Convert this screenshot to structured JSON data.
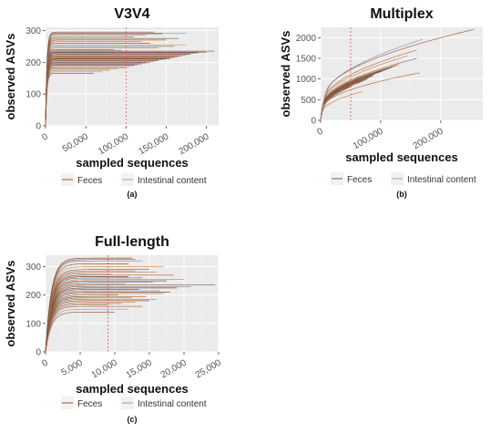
{
  "chart_data": [
    {
      "type": "line",
      "panel_label": "(a)",
      "title": "V3V4",
      "xlabel": "sampled sequences",
      "ylabel": "observed ASVs",
      "xlim": [
        0,
        215000
      ],
      "ylim": [
        0,
        310
      ],
      "xticks": [
        0,
        50000,
        100000,
        150000,
        200000
      ],
      "xtick_labels": [
        "0",
        "50,000",
        "100,000",
        "150,000",
        "200,000"
      ],
      "yticks": [
        0,
        100,
        200,
        300
      ],
      "ytick_labels": [
        "0",
        "100",
        "200",
        "300"
      ],
      "grid": true,
      "legend_position": "bottom",
      "reference_line_x": 100000,
      "series": [
        {
          "name": "Feces",
          "color": "#a0522d"
        },
        {
          "name": "Intestinal content",
          "color": "#8fa3c8"
        }
      ],
      "curves": {
        "saturation_x": 5000,
        "asymptotes": [
          165,
          170,
          175,
          180,
          183,
          186,
          190,
          192,
          195,
          198,
          200,
          202,
          205,
          208,
          210,
          212,
          215,
          218,
          220,
          222,
          225,
          228,
          230,
          232,
          235,
          238,
          240,
          245,
          250,
          255,
          260,
          265,
          270,
          275,
          280,
          285,
          290,
          292,
          295
        ],
        "max_x": [
          60000,
          70000,
          80000,
          90000,
          100000,
          105000,
          110000,
          115000,
          120000,
          125000,
          130000,
          135000,
          140000,
          145000,
          150000,
          155000,
          160000,
          165000,
          170000,
          175000,
          180000,
          185000,
          190000,
          200000,
          210000,
          95000,
          85000,
          140000,
          160000,
          175000,
          130000,
          120000,
          150000,
          165000,
          110000,
          125000,
          145000,
          175000,
          135000
        ]
      }
    },
    {
      "type": "line",
      "panel_label": "(b)",
      "title": "Multiplex",
      "xlabel": "sampled sequences",
      "ylabel": "observed ASVs",
      "xlim": [
        0,
        270000
      ],
      "ylim": [
        0,
        2250
      ],
      "xticks": [
        0,
        100000,
        200000
      ],
      "xtick_labels": [
        "0",
        "100,000",
        "200,000"
      ],
      "yticks": [
        0,
        500,
        1000,
        1500,
        2000
      ],
      "ytick_labels": [
        "0",
        "500",
        "1000",
        "1500",
        "2000"
      ],
      "grid": true,
      "legend_position": "bottom",
      "reference_line_x": 50000,
      "series": [
        {
          "name": "Feces",
          "color": "#a0522d"
        },
        {
          "name": "Intestinal content",
          "color": "#8fa3c8"
        }
      ],
      "curves": {
        "model": "power",
        "endpoints": [
          [
            255000,
            2200
          ],
          [
            170000,
            1960
          ],
          [
            160000,
            1700
          ],
          [
            145000,
            1560
          ],
          [
            160000,
            1500
          ],
          [
            135000,
            1400
          ],
          [
            130000,
            1350
          ],
          [
            125000,
            1320
          ],
          [
            120000,
            1290
          ],
          [
            115000,
            1260
          ],
          [
            110000,
            1230
          ],
          [
            105000,
            1200
          ],
          [
            100000,
            1180
          ],
          [
            95000,
            1150
          ],
          [
            90000,
            1120
          ],
          [
            88000,
            1090
          ],
          [
            85000,
            1060
          ],
          [
            80000,
            1030
          ],
          [
            78000,
            1000
          ],
          [
            75000,
            980
          ],
          [
            70000,
            950
          ],
          [
            60000,
            900
          ],
          [
            55000,
            860
          ],
          [
            50000,
            820
          ],
          [
            45000,
            780
          ],
          [
            40000,
            750
          ],
          [
            165000,
            1150
          ],
          [
            70000,
            700
          ]
        ]
      }
    },
    {
      "type": "line",
      "panel_label": "(c)",
      "title": "Full-length",
      "xlabel": "sampled sequences",
      "ylabel": "observed ASVs",
      "xlim": [
        0,
        25000
      ],
      "ylim": [
        0,
        340
      ],
      "xticks": [
        0,
        5000,
        10000,
        15000,
        20000,
        25000
      ],
      "xtick_labels": [
        "0",
        "5,000",
        "10,000",
        "15,000",
        "20,000",
        "25,000"
      ],
      "yticks": [
        0,
        100,
        200,
        300
      ],
      "ytick_labels": [
        "0",
        "100",
        "200",
        "300"
      ],
      "grid": true,
      "legend_position": "bottom",
      "reference_line_x": 9000,
      "series": [
        {
          "name": "Feces",
          "color": "#a0522d"
        },
        {
          "name": "Intestinal content",
          "color": "#8fa3c8"
        }
      ],
      "curves": {
        "saturation_x": 2500,
        "asymptotes": [
          140,
          150,
          160,
          165,
          170,
          175,
          180,
          185,
          190,
          195,
          200,
          205,
          210,
          215,
          220,
          225,
          230,
          235,
          240,
          245,
          250,
          255,
          260,
          265,
          270,
          275,
          280,
          285,
          290,
          300,
          310,
          320,
          325,
          330
        ],
        "max_x": [
          10000,
          12000,
          14000,
          9000,
          11000,
          13000,
          15000,
          16000,
          12500,
          14500,
          10500,
          17000,
          18000,
          16500,
          13500,
          19000,
          21000,
          24500,
          11500,
          15500,
          17500,
          20000,
          14000,
          12000,
          18500,
          9500,
          16000,
          13000,
          15000,
          17000,
          12000,
          14000,
          13000,
          12500
        ]
      }
    }
  ]
}
